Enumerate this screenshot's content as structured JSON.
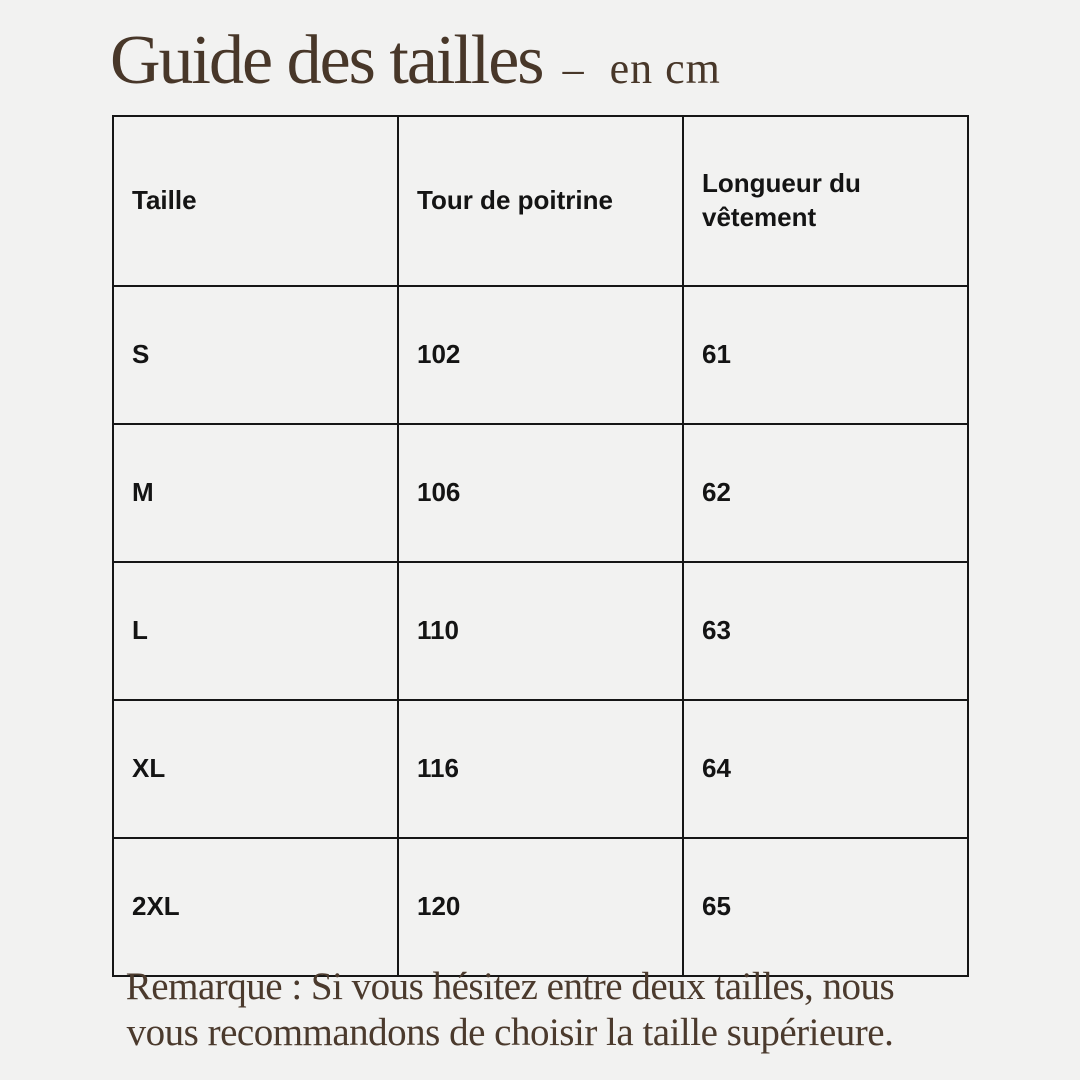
{
  "header": {
    "title": "Guide des tailles",
    "dash": "–",
    "unit": "en cm"
  },
  "colors": {
    "background": "#f2f2f1",
    "title_brown": "#483729",
    "note_brown": "#4b3a2d",
    "table_border": "#161616",
    "table_text": "#141414"
  },
  "table": {
    "columns": [
      "Taille",
      "Tour de poitrine",
      "Longueur du vêtement"
    ],
    "rows": [
      [
        "S",
        "102",
        "61"
      ],
      [
        "M",
        "106",
        "62"
      ],
      [
        "L",
        "110",
        "63"
      ],
      [
        "XL",
        "116",
        "64"
      ],
      [
        "2XL",
        "120",
        "65"
      ]
    ]
  },
  "note": {
    "line1": "Remarque : Si vous hésitez entre deux tailles, nous",
    "line2": "vous recommandons de choisir la taille supérieure."
  }
}
